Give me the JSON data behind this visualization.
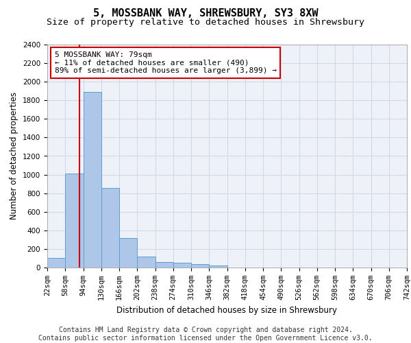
{
  "title": "5, MOSSBANK WAY, SHREWSBURY, SY3 8XW",
  "subtitle": "Size of property relative to detached houses in Shrewsbury",
  "xlabel": "Distribution of detached houses by size in Shrewsbury",
  "ylabel": "Number of detached properties",
  "bar_values": [
    100,
    1010,
    1890,
    860,
    315,
    120,
    60,
    50,
    35,
    25,
    0,
    0,
    0,
    0,
    0,
    0,
    0,
    0,
    0,
    0
  ],
  "bar_labels": [
    "22sqm",
    "58sqm",
    "94sqm",
    "130sqm",
    "166sqm",
    "202sqm",
    "238sqm",
    "274sqm",
    "310sqm",
    "346sqm",
    "382sqm",
    "418sqm",
    "454sqm",
    "490sqm",
    "526sqm",
    "562sqm",
    "598sqm",
    "634sqm",
    "670sqm",
    "706sqm",
    "742sqm"
  ],
  "bar_color": "#aec6e8",
  "bar_edge_color": "#5a9fd4",
  "vline_x": 1.78,
  "vline_color": "#cc0000",
  "annotation_text": "5 MOSSBANK WAY: 79sqm\n← 11% of detached houses are smaller (490)\n89% of semi-detached houses are larger (3,899) →",
  "annotation_box_color": "#ffffff",
  "annotation_box_edge": "#cc0000",
  "ylim": [
    0,
    2400
  ],
  "yticks": [
    0,
    200,
    400,
    600,
    800,
    1000,
    1200,
    1400,
    1600,
    1800,
    2000,
    2200,
    2400
  ],
  "grid_color": "#d0d8e8",
  "background_color": "#eef2f8",
  "footer1": "Contains HM Land Registry data © Crown copyright and database right 2024.",
  "footer2": "Contains public sector information licensed under the Open Government Licence v3.0.",
  "title_fontsize": 11,
  "subtitle_fontsize": 9.5,
  "axis_label_fontsize": 8.5,
  "tick_fontsize": 7.5,
  "annotation_fontsize": 8,
  "footer_fontsize": 7
}
